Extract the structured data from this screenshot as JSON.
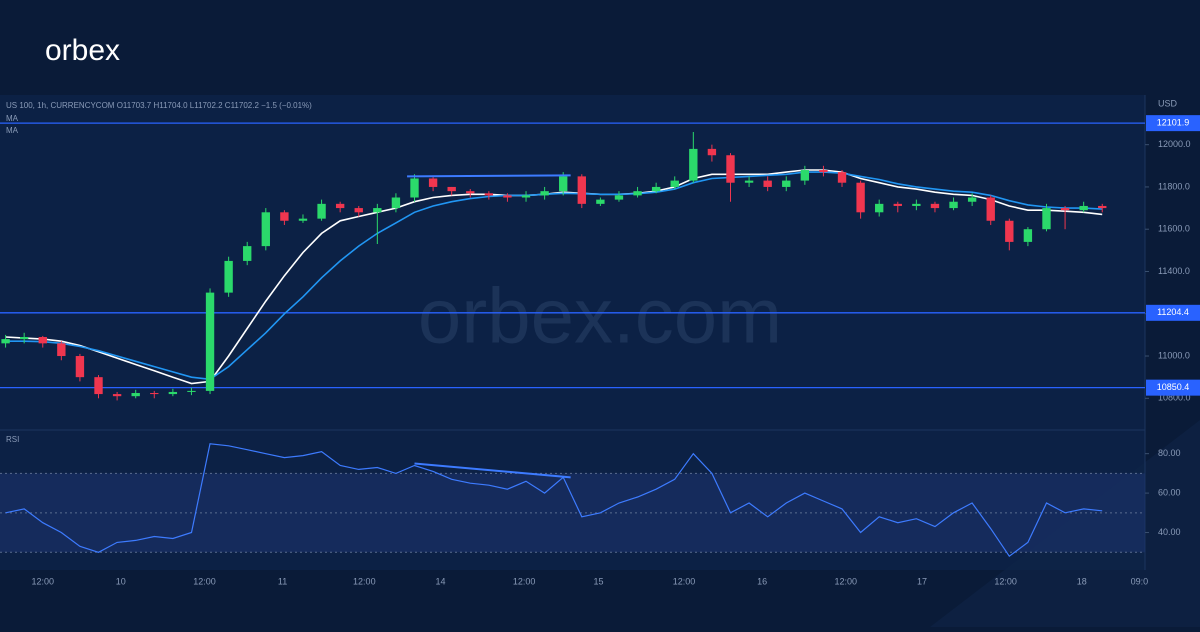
{
  "brand": "orbex",
  "watermark": "orbex.com",
  "chart_data": [
    {
      "type": "candlestick",
      "title": "US 100, 1h, CURRENCYCOM  O11703.7  H11704.0  L11702.2  C11702.2  −1.5 (−0.01%)",
      "axis_label": "USD",
      "up_color": "#2bd96b",
      "down_color": "#f0364f",
      "open": [
        11060,
        11080,
        11090,
        11060,
        11000,
        10900,
        10820,
        10810,
        10825,
        10820,
        10830,
        10835,
        11300,
        11450,
        11520,
        11680,
        11640,
        11650,
        11720,
        11700,
        11680,
        11700,
        11750,
        11840,
        11800,
        11780,
        11770,
        11760,
        11750,
        11760,
        11780,
        11850,
        11720,
        11740,
        11760,
        11780,
        11800,
        11830,
        11980,
        11950,
        11820,
        11830,
        11800,
        11830,
        11880,
        11870,
        11820,
        11680,
        11720,
        11710,
        11720,
        11700,
        11730,
        11750,
        11640,
        11540,
        11600,
        11700,
        11690,
        11710
      ],
      "high": [
        11100,
        11110,
        11095,
        11070,
        11010,
        10910,
        10830,
        10840,
        10835,
        10845,
        10850,
        11320,
        11470,
        11540,
        11700,
        11690,
        11670,
        11740,
        11730,
        11710,
        11720,
        11770,
        11860,
        11850,
        11800,
        11790,
        11780,
        11770,
        11780,
        11800,
        11870,
        11860,
        11750,
        11780,
        11800,
        11820,
        11850,
        12060,
        12000,
        11960,
        11850,
        11850,
        11850,
        11900,
        11900,
        11880,
        11830,
        11740,
        11730,
        11740,
        11730,
        11750,
        11770,
        11760,
        11650,
        11610,
        11720,
        11710,
        11730,
        11720
      ],
      "low": [
        11040,
        11060,
        11040,
        10980,
        10880,
        10800,
        10790,
        10800,
        10800,
        10810,
        10815,
        10820,
        11280,
        11430,
        11500,
        11620,
        11630,
        11640,
        11680,
        11660,
        11530,
        11680,
        11730,
        11780,
        11760,
        11750,
        11740,
        11730,
        11730,
        11740,
        11760,
        11700,
        11710,
        11730,
        11750,
        11770,
        11790,
        11820,
        11920,
        11730,
        11800,
        11780,
        11780,
        11810,
        11850,
        11800,
        11650,
        11660,
        11680,
        11690,
        11680,
        11690,
        11710,
        11620,
        11500,
        11520,
        11590,
        11600,
        11680,
        11680
      ],
      "close": [
        11080,
        11090,
        11060,
        11000,
        10900,
        10820,
        10810,
        10825,
        10820,
        10830,
        10835,
        11300,
        11450,
        11520,
        11680,
        11640,
        11650,
        11720,
        11700,
        11680,
        11700,
        11750,
        11840,
        11800,
        11780,
        11770,
        11760,
        11750,
        11760,
        11780,
        11850,
        11720,
        11740,
        11760,
        11780,
        11800,
        11830,
        11980,
        11950,
        11820,
        11830,
        11800,
        11830,
        11880,
        11870,
        11820,
        11680,
        11720,
        11710,
        11720,
        11700,
        11730,
        11750,
        11640,
        11540,
        11600,
        11700,
        11690,
        11710,
        11700
      ],
      "series": [
        {
          "name": "MA",
          "color": "#ffffff",
          "values": [
            11090,
            11085,
            11080,
            11070,
            11050,
            11020,
            10990,
            10960,
            10930,
            10900,
            10870,
            10880,
            11000,
            11130,
            11260,
            11380,
            11490,
            11580,
            11640,
            11660,
            11680,
            11700,
            11730,
            11750,
            11760,
            11765,
            11765,
            11760,
            11760,
            11765,
            11775,
            11770,
            11765,
            11765,
            11770,
            11780,
            11800,
            11840,
            11860,
            11860,
            11860,
            11860,
            11870,
            11880,
            11880,
            11870,
            11840,
            11820,
            11800,
            11790,
            11775,
            11765,
            11760,
            11740,
            11710,
            11690,
            11690,
            11685,
            11680,
            11670
          ]
        },
        {
          "name": "MA",
          "color": "#2196f3",
          "values": [
            11070,
            11070,
            11068,
            11060,
            11045,
            11025,
            11000,
            10975,
            10950,
            10925,
            10900,
            10890,
            10950,
            11030,
            11110,
            11200,
            11280,
            11370,
            11450,
            11520,
            11580,
            11630,
            11680,
            11710,
            11730,
            11745,
            11755,
            11760,
            11760,
            11765,
            11770,
            11768,
            11765,
            11765,
            11768,
            11775,
            11790,
            11820,
            11840,
            11845,
            11850,
            11855,
            11860,
            11870,
            11870,
            11865,
            11850,
            11835,
            11815,
            11800,
            11790,
            11780,
            11775,
            11760,
            11735,
            11715,
            11705,
            11700,
            11700,
            11695
          ]
        }
      ],
      "levels": [
        12101.9,
        11204.4,
        10850.4
      ],
      "level_color": "#2962ff",
      "trendlines": [
        {
          "x": [
            21.6,
            30.4
          ],
          "y": [
            11850,
            11855
          ],
          "color": "#3d7bff"
        }
      ],
      "xlim": [
        -0.3,
        61.3
      ],
      "xticks": [
        {
          "value": 2.0,
          "label": "12:00"
        },
        {
          "value": 6.2,
          "label": "10"
        },
        {
          "value": 10.7,
          "label": "12:00"
        },
        {
          "value": 14.9,
          "label": "11"
        },
        {
          "value": 19.3,
          "label": "12:00"
        },
        {
          "value": 23.4,
          "label": "14"
        },
        {
          "value": 27.9,
          "label": "12:00"
        },
        {
          "value": 31.9,
          "label": "15"
        },
        {
          "value": 36.5,
          "label": "12:00"
        },
        {
          "value": 40.7,
          "label": "16"
        },
        {
          "value": 45.2,
          "label": "12:00"
        },
        {
          "value": 49.3,
          "label": "17"
        },
        {
          "value": 53.8,
          "label": "12:00"
        },
        {
          "value": 57.9,
          "label": "18"
        },
        {
          "value": 61.0,
          "label": "09:0"
        }
      ],
      "ylim": [
        10650,
        12235
      ],
      "yticks": [
        {
          "value": 10800,
          "label": "10800.0"
        },
        {
          "value": 11000,
          "label": "11000.0"
        },
        {
          "value": 11200,
          "label": "11200.0"
        },
        {
          "value": 11400,
          "label": "11400.0"
        },
        {
          "value": 11600,
          "label": "11600.0"
        },
        {
          "value": 11800,
          "label": "11800.0"
        },
        {
          "value": 12000,
          "label": "12000.0"
        }
      ]
    },
    {
      "type": "line",
      "title": "RSI",
      "color": "#3d7bff",
      "values": [
        50,
        52,
        45,
        40,
        33,
        30,
        35,
        36,
        38,
        37,
        40,
        85,
        84,
        82,
        80,
        78,
        79,
        81,
        74,
        72,
        73,
        70,
        74,
        71,
        67,
        65,
        64,
        62,
        66,
        60,
        68,
        48,
        50,
        55,
        58,
        62,
        67,
        80,
        70,
        50,
        55,
        48,
        55,
        60,
        56,
        52,
        40,
        48,
        45,
        47,
        43,
        50,
        55,
        42,
        28,
        35,
        55,
        50,
        52,
        51
      ],
      "band": [
        30,
        70
      ],
      "levels": [
        30,
        50,
        70
      ],
      "trendlines": [
        {
          "x": [
            22,
            30.4
          ],
          "y": [
            75,
            68
          ],
          "color": "#3d7bff"
        }
      ],
      "xlim": [
        -0.3,
        61.3
      ],
      "ylim": [
        21,
        92
      ],
      "yticks": [
        {
          "value": 40,
          "label": "40.00"
        },
        {
          "value": 60,
          "label": "60.00"
        },
        {
          "value": 80,
          "label": "80.00"
        }
      ]
    }
  ]
}
